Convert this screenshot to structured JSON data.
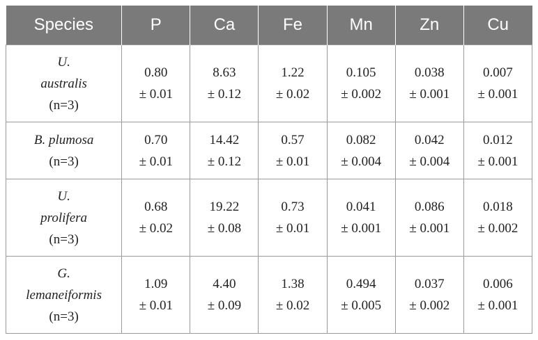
{
  "table": {
    "headers": [
      "Species",
      "P",
      "Ca",
      "Fe",
      "Mn",
      "Zn",
      "Cu"
    ],
    "rows": [
      {
        "species_lines": [
          "U.",
          "australis"
        ],
        "n": "(n=3)",
        "values": [
          {
            "mean": "0.80",
            "sd": "± 0.01"
          },
          {
            "mean": "8.63",
            "sd": "± 0.12"
          },
          {
            "mean": "1.22",
            "sd": "± 0.02"
          },
          {
            "mean": "0.105",
            "sd": "± 0.002"
          },
          {
            "mean": "0.038",
            "sd": "± 0.001"
          },
          {
            "mean": "0.007",
            "sd": "± 0.001"
          }
        ]
      },
      {
        "species_lines": [
          "B. plumosa"
        ],
        "n": "(n=3)",
        "values": [
          {
            "mean": "0.70",
            "sd": "± 0.01"
          },
          {
            "mean": "14.42",
            "sd": "± 0.12"
          },
          {
            "mean": "0.57",
            "sd": "± 0.01"
          },
          {
            "mean": "0.082",
            "sd": "± 0.004"
          },
          {
            "mean": "0.042",
            "sd": "± 0.004"
          },
          {
            "mean": "0.012",
            "sd": "± 0.001"
          }
        ]
      },
      {
        "species_lines": [
          "U.",
          "prolifera"
        ],
        "n": "(n=3)",
        "values": [
          {
            "mean": "0.68",
            "sd": "± 0.02"
          },
          {
            "mean": "19.22",
            "sd": "± 0.08"
          },
          {
            "mean": "0.73",
            "sd": "± 0.01"
          },
          {
            "mean": "0.041",
            "sd": "± 0.001"
          },
          {
            "mean": "0.086",
            "sd": "± 0.001"
          },
          {
            "mean": "0.018",
            "sd": "± 0.002"
          }
        ]
      },
      {
        "species_lines": [
          "G.",
          "lemaneiformis"
        ],
        "n": "(n=3)",
        "values": [
          {
            "mean": "1.09",
            "sd": "± 0.01"
          },
          {
            "mean": "4.40",
            "sd": "± 0.09"
          },
          {
            "mean": "1.38",
            "sd": "± 0.02"
          },
          {
            "mean": "0.494",
            "sd": "± 0.005"
          },
          {
            "mean": "0.037",
            "sd": "± 0.002"
          },
          {
            "mean": "0.006",
            "sd": "± 0.001"
          }
        ]
      }
    ]
  },
  "colors": {
    "header_bg": "#7a7a7a",
    "header_text": "#ffffff",
    "border": "#9a9a9a",
    "body_text": "#222222"
  }
}
